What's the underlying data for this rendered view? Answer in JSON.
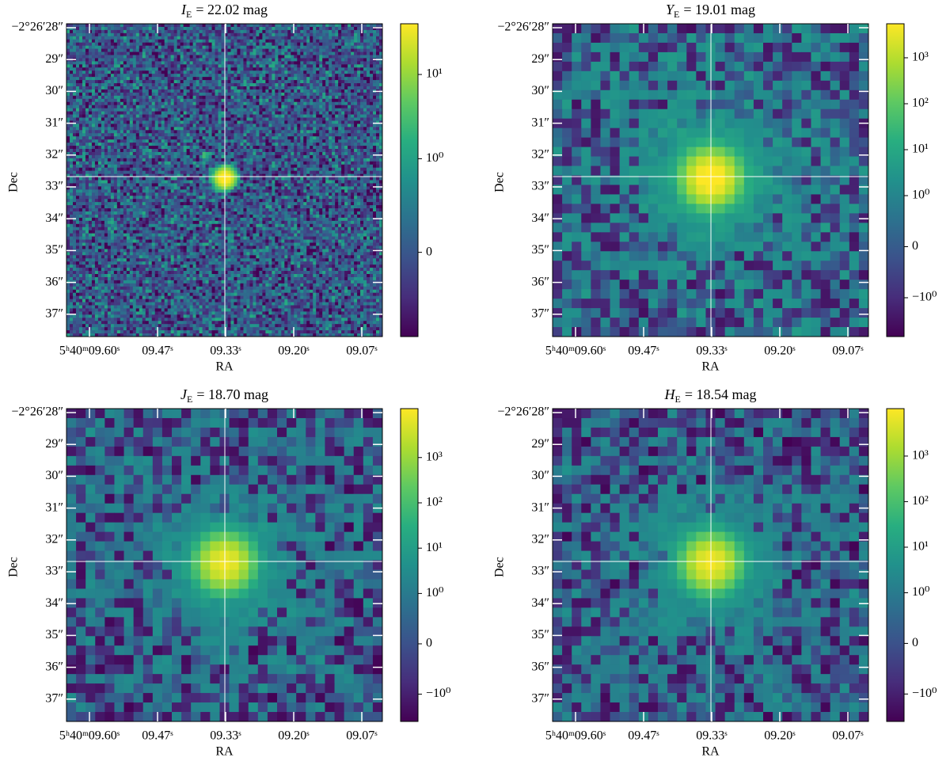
{
  "figure": {
    "panels": [
      {
        "title": {
          "band": "I",
          "subscript": "E",
          "text": "= 22.02 mag"
        },
        "xlabel": "RA",
        "ylabel": "Dec",
        "ra_ticks": [
          "5ʰ40ᵐ09.60ˢ",
          "09.47ˢ",
          "09.33ˢ",
          "09.20ˢ",
          "09.07ˢ"
        ],
        "dec_ticks": [
          "−2°26′28″",
          "29″",
          "30″",
          "31″",
          "32″",
          "33″",
          "34″",
          "35″",
          "36″",
          "37″"
        ],
        "clim": [
          -0.9,
          40
        ],
        "cticks": [
          0,
          {
            "value": 1,
            "label": "10⁰"
          },
          {
            "value": 10,
            "label": "10¹"
          }
        ]
      },
      {
        "title": {
          "band": "Y",
          "subscript": "E",
          "text": "= 19.01 mag"
        },
        "xlabel": "RA",
        "ylabel": "Dec",
        "ra_ticks": [
          "5ʰ40ᵐ09.60ˢ",
          "09.47ˢ",
          "09.33ˢ",
          "09.20ˢ",
          "09.07ˢ"
        ],
        "dec_ticks": [
          "−2°26′28″",
          "29″",
          "30″",
          "31″",
          "32″",
          "33″",
          "34″",
          "35″",
          "36″",
          "37″"
        ],
        "clim": [
          -7,
          5500
        ],
        "cticks": [
          {
            "value": -1,
            "label": "−10⁰"
          },
          0,
          {
            "value": 1,
            "label": "10⁰"
          },
          {
            "value": 10,
            "label": "10¹"
          },
          {
            "value": 100,
            "label": "10²"
          },
          {
            "value": 1000,
            "label": "10³"
          }
        ]
      },
      {
        "title": {
          "band": "J",
          "subscript": "E",
          "text": "= 18.70 mag"
        },
        "xlabel": "RA",
        "ylabel": "Dec",
        "ra_ticks": [
          "5ʰ40ᵐ09.60ˢ",
          "09.47ˢ",
          "09.33ˢ",
          "09.20ˢ",
          "09.07ˢ"
        ],
        "dec_ticks": [
          "−2°26′28″",
          "29″",
          "30″",
          "31″",
          "32″",
          "33″",
          "34″",
          "35″",
          "36″",
          "37″"
        ],
        "clim": [
          -4,
          12000
        ],
        "cticks": [
          {
            "value": -1,
            "label": "−10⁰"
          },
          0,
          {
            "value": 1,
            "label": "10⁰"
          },
          {
            "value": 10,
            "label": "10¹"
          },
          {
            "value": 100,
            "label": "10²"
          },
          {
            "value": 1000,
            "label": "10³"
          }
        ]
      },
      {
        "title": {
          "band": "H",
          "subscript": "E",
          "text": "= 18.54 mag"
        },
        "xlabel": "RA",
        "ylabel": "Dec",
        "ra_ticks": [
          "5ʰ40ᵐ09.60ˢ",
          "09.47ˢ",
          "09.33ˢ",
          "09.20ˢ",
          "09.07ˢ"
        ],
        "dec_ticks": [
          "−2°26′28″",
          "29″",
          "30″",
          "31″",
          "32″",
          "33″",
          "34″",
          "35″",
          "36″",
          "37″"
        ],
        "clim": [
          -4,
          11000
        ],
        "cticks": [
          {
            "value": -1,
            "label": "−10⁰"
          },
          0,
          {
            "value": 1,
            "label": "10⁰"
          },
          {
            "value": 10,
            "label": "10¹"
          },
          {
            "value": 100,
            "label": "10²"
          },
          {
            "value": 1000,
            "label": "10³"
          }
        ]
      }
    ]
  }
}
